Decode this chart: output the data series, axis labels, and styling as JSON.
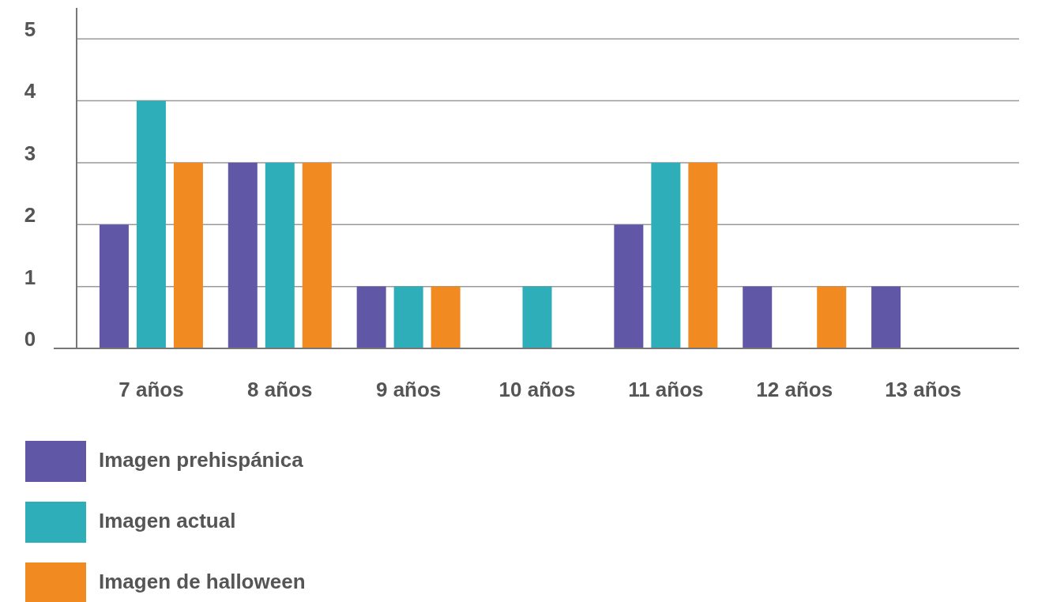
{
  "chart_data": {
    "type": "bar",
    "categories": [
      "7 años",
      "8 años",
      "9 años",
      "10 años",
      "11 años",
      "12 años",
      "13 años"
    ],
    "series": [
      {
        "name": "Imagen prehispánica",
        "color": "#6057a6",
        "values": [
          2,
          3,
          1,
          0,
          2,
          1,
          1
        ]
      },
      {
        "name": "Imagen actual",
        "color": "#2daeb9",
        "values": [
          4,
          3,
          1,
          1,
          3,
          0,
          0
        ]
      },
      {
        "name": "Imagen de halloween",
        "color": "#f28a22",
        "values": [
          3,
          3,
          1,
          0,
          3,
          1,
          0
        ]
      }
    ],
    "ylim": [
      0,
      5.5
    ],
    "yticks": [
      0,
      1,
      2,
      3,
      4,
      5
    ],
    "grid": "y",
    "legend": "bottom"
  }
}
